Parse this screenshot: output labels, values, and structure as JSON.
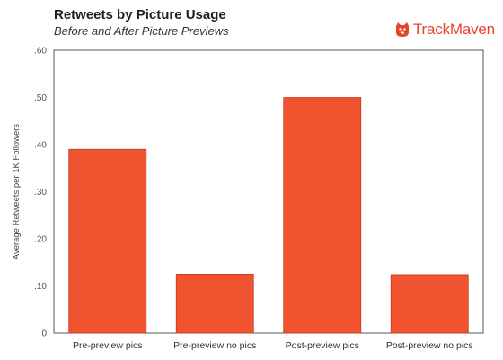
{
  "header": {
    "title": "Retweets by Picture Usage",
    "subtitle": "Before and After Picture Previews"
  },
  "logo": {
    "text": "TrackMaven",
    "icon": "dog-icon",
    "color": "#e8442b"
  },
  "chart_data": {
    "type": "bar",
    "categories": [
      "Pre-preview pics",
      "Pre-preview no pics",
      "Post-preview pics",
      "Post-preview no pics"
    ],
    "values": [
      0.39,
      0.125,
      0.5,
      0.124
    ],
    "ylabel": "Average Retweets per 1K Followers",
    "ylim": [
      0,
      0.6
    ],
    "yticks": [
      0,
      0.1,
      0.2,
      0.3,
      0.4,
      0.5,
      0.6
    ],
    "ytick_labels": [
      "0",
      ".10",
      ".20",
      ".30",
      ".40",
      ".50",
      ".60"
    ],
    "bar_color": "#f05330",
    "bar_edge_color": "#c93a1e",
    "grid": false,
    "legend": "none"
  }
}
